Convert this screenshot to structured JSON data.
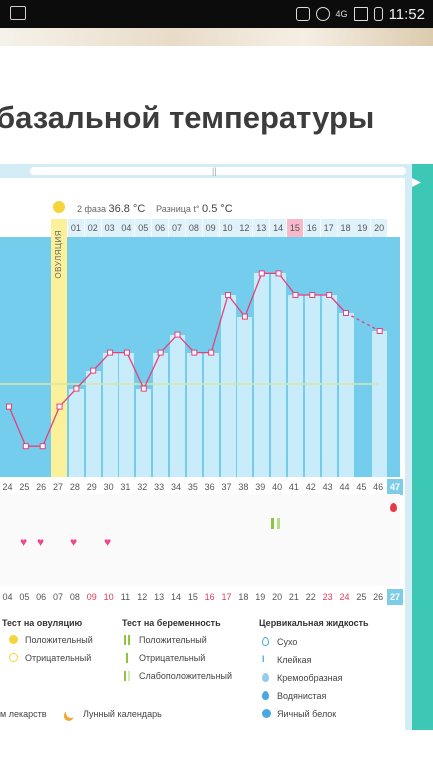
{
  "status": {
    "time": "11:52",
    "network": "4G"
  },
  "heading": "базальной температуры",
  "header": {
    "phase_label": "2 фаза",
    "phase_value": "36.8 °C",
    "diff_label": "Разница t°",
    "diff_value": "0.5 °C"
  },
  "ovulation_label": "ОВУЛЯЦИЯ",
  "day_labels": [
    "01",
    "02",
    "03",
    "04",
    "05",
    "06",
    "07",
    "08",
    "09",
    "10",
    "12",
    "13",
    "14",
    "15",
    "16",
    "17",
    "18",
    "19",
    "20"
  ],
  "highlighted_day": "15",
  "cycle_days": [
    "24",
    "25",
    "26",
    "27",
    "28",
    "29",
    "30",
    "31",
    "32",
    "33",
    "34",
    "35",
    "36",
    "37",
    "38",
    "39",
    "40",
    "41",
    "42",
    "43",
    "44",
    "45",
    "46",
    "47"
  ],
  "dates": [
    {
      "t": "04",
      "red": false
    },
    {
      "t": "05",
      "red": false
    },
    {
      "t": "06",
      "red": false
    },
    {
      "t": "07",
      "red": false
    },
    {
      "t": "08",
      "red": false
    },
    {
      "t": "09",
      "red": true
    },
    {
      "t": "10",
      "red": true
    },
    {
      "t": "11",
      "red": false
    },
    {
      "t": "12",
      "red": false
    },
    {
      "t": "13",
      "red": false
    },
    {
      "t": "14",
      "red": false
    },
    {
      "t": "15",
      "red": false
    },
    {
      "t": "16",
      "red": true
    },
    {
      "t": "17",
      "red": true
    },
    {
      "t": "18",
      "red": false
    },
    {
      "t": "19",
      "red": false
    },
    {
      "t": "20",
      "red": false
    },
    {
      "t": "21",
      "red": false
    },
    {
      "t": "22",
      "red": false
    },
    {
      "t": "23",
      "red": true
    },
    {
      "t": "24",
      "red": true
    },
    {
      "t": "25",
      "red": false
    },
    {
      "t": "26",
      "red": false
    },
    {
      "t": "27",
      "red": false
    }
  ],
  "temperature_series": [
    0.38,
    0.16,
    0.16,
    0.38,
    0.48,
    0.58,
    0.68,
    0.68,
    0.48,
    0.68,
    0.78,
    0.68,
    0.68,
    1.0,
    0.88,
    1.12,
    1.12,
    1.0,
    1.0,
    1.0,
    0.9,
    null,
    0.8
  ],
  "colors": {
    "accent": "#3dc8b6",
    "grid": "#75cdee",
    "line": "#e63f7a",
    "ovulation": "#fbf19a",
    "highlight": "#f7b9c9"
  },
  "legend": {
    "ovulation_test": {
      "title": "Тест на овуляцию",
      "positive": "Положительный",
      "negative": "Отрицательный"
    },
    "pregnancy_test": {
      "title": "Тест на беременность",
      "positive": "Положительный",
      "negative": "Отрицательный",
      "weak": "Слабоположительный"
    },
    "cervical": {
      "title": "Цервикальная жидкость",
      "dry": "Сухо",
      "sticky": "Клейкая",
      "creamy": "Кремообразная",
      "watery": "Водянистая",
      "eggwhite": "Яичный белок"
    },
    "medicines": "м лекарств",
    "lunar": "Лунный календарь"
  }
}
